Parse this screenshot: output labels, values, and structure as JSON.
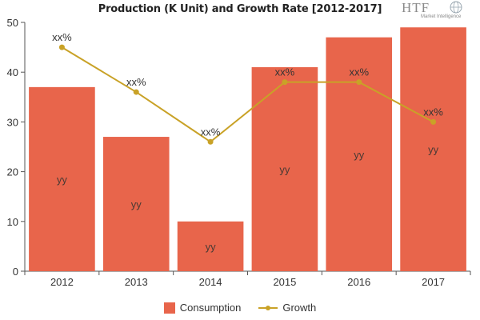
{
  "logo": {
    "text": "HTF",
    "subtext": "Market Intelligence"
  },
  "chart_data": {
    "type": "bar",
    "title": "Production (K Unit) and Growth Rate [2012-2017]",
    "categories": [
      "2012",
      "2013",
      "2014",
      "2015",
      "2016",
      "2017"
    ],
    "series": [
      {
        "name": "Consumption",
        "type": "bar",
        "values": [
          37,
          27,
          10,
          41,
          47,
          49
        ],
        "labels": [
          "yy",
          "yy",
          "yy",
          "yy",
          "yy",
          "yy"
        ],
        "color": "#E8654B"
      },
      {
        "name": "Growth",
        "type": "line",
        "values": [
          45,
          36,
          26,
          38,
          38,
          30
        ],
        "labels": [
          "xx%",
          "xx%",
          "xx%",
          "xx%",
          "xx%",
          "xx%"
        ],
        "color": "#C9A227"
      }
    ],
    "ylim": [
      0,
      50
    ],
    "yticks": [
      "0",
      "10",
      "20",
      "30",
      "40",
      "50"
    ],
    "grid": false,
    "legend": "bottom"
  }
}
